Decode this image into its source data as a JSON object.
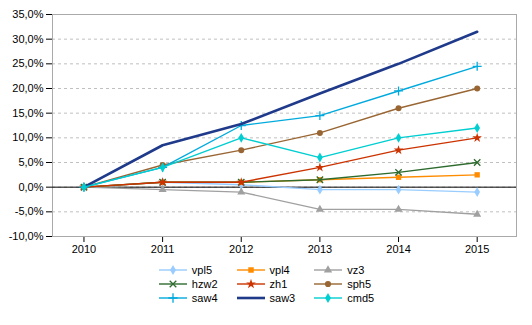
{
  "chart_data": {
    "type": "line",
    "x": [
      2010,
      2011,
      2012,
      2013,
      2014,
      2015
    ],
    "series": [
      {
        "name": "vpl5",
        "color": "#99CCFF",
        "marker": "diamond",
        "values": [
          0.0,
          0.01,
          0.005,
          -0.005,
          -0.005,
          -0.01
        ]
      },
      {
        "name": "vpl4",
        "color": "#FF8C00",
        "marker": "square",
        "values": [
          0.0,
          0.01,
          0.01,
          0.015,
          0.02,
          0.025
        ]
      },
      {
        "name": "vz3",
        "color": "#A0A0A0",
        "marker": "triangle",
        "values": [
          0.0,
          -0.005,
          -0.01,
          -0.045,
          -0.045,
          -0.055
        ]
      },
      {
        "name": "hzw2",
        "color": "#2E6B2E",
        "marker": "x",
        "values": [
          0.0,
          0.01,
          0.01,
          0.015,
          0.03,
          0.05
        ]
      },
      {
        "name": "zh1",
        "color": "#CC3300",
        "marker": "star",
        "values": [
          0.0,
          0.01,
          0.01,
          0.04,
          0.075,
          0.1
        ]
      },
      {
        "name": "sph5",
        "color": "#996633",
        "marker": "circle",
        "values": [
          0.0,
          0.045,
          0.075,
          0.11,
          0.16,
          0.2
        ]
      },
      {
        "name": "saw4",
        "color": "#00AADD",
        "marker": "plus",
        "values": [
          0.0,
          0.04,
          0.125,
          0.145,
          0.195,
          0.245
        ]
      },
      {
        "name": "saw3",
        "color": "#1F3A8A",
        "values": [
          0.0,
          0.085,
          0.128,
          0.19,
          0.25,
          0.315
        ]
      },
      {
        "name": "cmd5",
        "color": "#00CED1",
        "marker": "diamond",
        "values": [
          0.0,
          0.04,
          0.1,
          0.06,
          0.1,
          0.12
        ]
      }
    ],
    "ylim": [
      -0.1,
      0.35
    ],
    "yticks": [
      {
        "value": -0.1,
        "label": "-10,0%"
      },
      {
        "value": -0.05,
        "label": "-5,0%"
      },
      {
        "value": 0.0,
        "label": "0,0%"
      },
      {
        "value": 0.05,
        "label": "5,0%"
      },
      {
        "value": 0.1,
        "label": "10,0%"
      },
      {
        "value": 0.15,
        "label": "15,0%"
      },
      {
        "value": 0.2,
        "label": "20,0%"
      },
      {
        "value": 0.25,
        "label": "25,0%"
      },
      {
        "value": 0.3,
        "label": "30,0%"
      },
      {
        "value": 0.35,
        "label": "35,0%"
      }
    ],
    "xlim": [
      2009.6,
      2015.5
    ],
    "xticks": [
      2010,
      2011,
      2012,
      2013,
      2014,
      2015
    ],
    "grid": "y",
    "legend": "bottom"
  }
}
